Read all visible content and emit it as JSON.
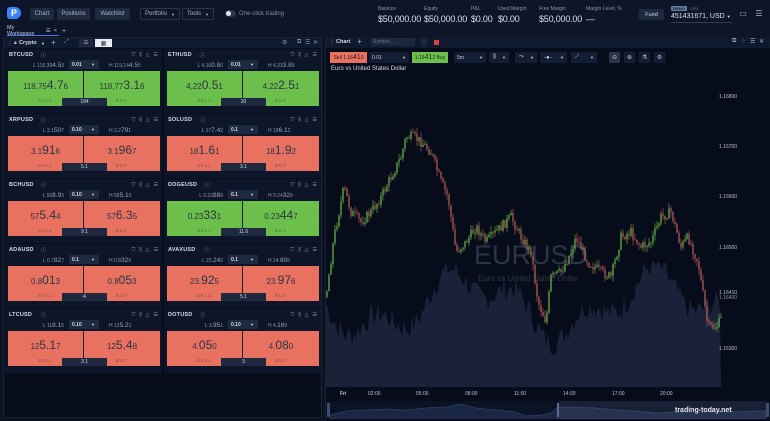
{
  "topbar": {
    "nav": [
      "Chart",
      "Positions",
      "Watchlist"
    ],
    "dropdowns": [
      "Portfolio",
      "Tools"
    ],
    "one_click_label": "One-click trading",
    "stats": [
      {
        "label": "Balance",
        "value": "$50,000.00"
      },
      {
        "label": "Equity",
        "value": "$50,000.00"
      },
      {
        "label": "P&L",
        "value": "$0.00"
      },
      {
        "label": "Used Margin",
        "value": "$0.00"
      },
      {
        "label": "Free Margin",
        "value": "$50,000.00"
      },
      {
        "label": "Margin Level, %",
        "value": "—"
      }
    ],
    "fund_label": "Fund",
    "account": {
      "badge": "DEMO",
      "type": "CFD",
      "id": "451431671, USD"
    }
  },
  "workspace": {
    "tab": "My Workspace"
  },
  "watchlist": {
    "name": "Crypto",
    "sell_label": "SELL",
    "buy_label": "BUY",
    "cards": [
      {
        "symbol": "BTCUSD",
        "low_pre": "L 116,39",
        "low_big": "4.5",
        "low_post": "3",
        "qty": "0.01",
        "high_pre": "H 119,14",
        "high_big": "4.5",
        "high_post": "5",
        "sell_pre": "118,75",
        "sell_big": "4.7",
        "sell_post": "6",
        "buy_pre": "118,77",
        "buy_big": "3.1",
        "buy_post": "6",
        "spread": "184",
        "color": "green"
      },
      {
        "symbol": "ETHUSD",
        "low_pre": "L 4,16",
        "low_big": "0.8",
        "low_post": "6",
        "qty": "0.01",
        "high_pre": "H 4,33",
        "high_big": "3.8",
        "high_post": "9",
        "sell_pre": "4,22",
        "sell_big": "0.5",
        "sell_post": "1",
        "buy_pre": "4,22",
        "buy_big": "2.5",
        "buy_post": "1",
        "spread": "20",
        "color": "green"
      },
      {
        "symbol": "XRPUSD",
        "low_pre": "L 3.1",
        "low_big": "50",
        "low_post": "7",
        "qty": "0.10",
        "high_pre": "H 3.2",
        "high_big": "79",
        "high_post": "1",
        "sell_pre": "3.1",
        "sell_big": "91",
        "sell_post": "6",
        "buy_pre": "3.1",
        "buy_big": "96",
        "buy_post": "7",
        "spread": "5.1",
        "color": "red"
      },
      {
        "symbol": "SOLUSD",
        "low_pre": "L 17",
        "low_big": "7.4",
        "low_post": "2",
        "qty": "0.1",
        "high_pre": "H 18",
        "high_big": "6.1",
        "high_post": "2",
        "sell_pre": "18",
        "sell_big": "1.6",
        "sell_post": "1",
        "buy_pre": "18",
        "buy_big": "1.9",
        "buy_post": "2",
        "spread": "3.1",
        "color": "red"
      },
      {
        "symbol": "BCHUSD",
        "low_pre": "L 55",
        "low_big": "8.9",
        "low_post": "3",
        "qty": "0.10",
        "high_pre": "H 58",
        "high_big": "5.1",
        "high_post": "0",
        "sell_pre": "57",
        "sell_big": "5.4",
        "sell_post": "4",
        "buy_pre": "57",
        "buy_big": "6.3",
        "buy_post": "5",
        "spread": "9.1",
        "color": "red"
      },
      {
        "symbol": "DOGEUSD",
        "low_pre": "L 0.22",
        "low_big": "88",
        "low_post": "9",
        "qty": "0.1",
        "high_pre": "H 0.24",
        "high_big": "32",
        "high_post": "8",
        "sell_pre": "0.23",
        "sell_big": "33",
        "sell_post": "1",
        "buy_pre": "0.23",
        "buy_big": "44",
        "buy_post": "7",
        "spread": "11.6",
        "color": "green"
      },
      {
        "symbol": "ADAUSD",
        "low_pre": "L 0.7",
        "low_big": "82",
        "low_post": "7",
        "qty": "0.1",
        "high_pre": "H 0.8",
        "high_big": "32",
        "high_post": "9",
        "sell_pre": "0.8",
        "sell_big": "01",
        "sell_post": "3",
        "buy_pre": "0.8",
        "buy_big": "05",
        "buy_post": "3",
        "spread": "4",
        "color": "red"
      },
      {
        "symbol": "AVAXUSD",
        "low_pre": "L 23.",
        "low_big": "24",
        "low_post": "2",
        "qty": "0.1",
        "high_pre": "H 24.",
        "high_big": "80",
        "high_post": "5",
        "sell_pre": "23.",
        "sell_big": "92",
        "sell_post": "5",
        "buy_pre": "23.",
        "buy_big": "97",
        "buy_post": "6",
        "spread": "5.1",
        "color": "red"
      },
      {
        "symbol": "LTCUSD",
        "low_pre": "L 11",
        "low_big": "8.1",
        "low_post": "5",
        "qty": "0.10",
        "high_pre": "H 12",
        "high_big": "5.2",
        "high_post": "1",
        "sell_pre": "12",
        "sell_big": "5.1",
        "sell_post": "7",
        "buy_pre": "12",
        "buy_big": "5.4",
        "buy_post": "8",
        "spread": "3.1",
        "color": "red"
      },
      {
        "symbol": "DOTUSD",
        "low_pre": "L 3.",
        "low_big": "95",
        "low_post": "1",
        "qty": "0.10",
        "high_pre": "H 4.",
        "high_big": "16",
        "high_post": "9",
        "sell_pre": "4.",
        "sell_big": "05",
        "sell_post": "0",
        "buy_pre": "4.",
        "buy_big": "08",
        "buy_post": "0",
        "spread": "3",
        "color": "red"
      }
    ]
  },
  "chart": {
    "title": "Chart",
    "symbol_placeholder": "Symbol...",
    "sell": {
      "pre": "Sell 1.16",
      "big": "41",
      "post": "0"
    },
    "qty": "0.01",
    "buy": {
      "pre": "1.16",
      "big": "41",
      "post": "2 Buy"
    },
    "timeframe": "5m",
    "subtitle": "Euro vs United States Dollar",
    "watermark": "EURUSD",
    "watermark_sub": "Euro vs United States Dollar",
    "y_labels": [
      "1.16800",
      "1.16700",
      "1.16600",
      "1.16500",
      "1.16410",
      "1.16400",
      "1.16300"
    ],
    "x_labels": [
      "Fri",
      "02:00",
      "05:00",
      "08:00",
      "11:00",
      "14:00",
      "17:00",
      "20:00"
    ],
    "site": "trading-today.net",
    "colors": {
      "up": "#6cbf4a",
      "down": "#c0605a",
      "volume": "#1e2740"
    }
  }
}
